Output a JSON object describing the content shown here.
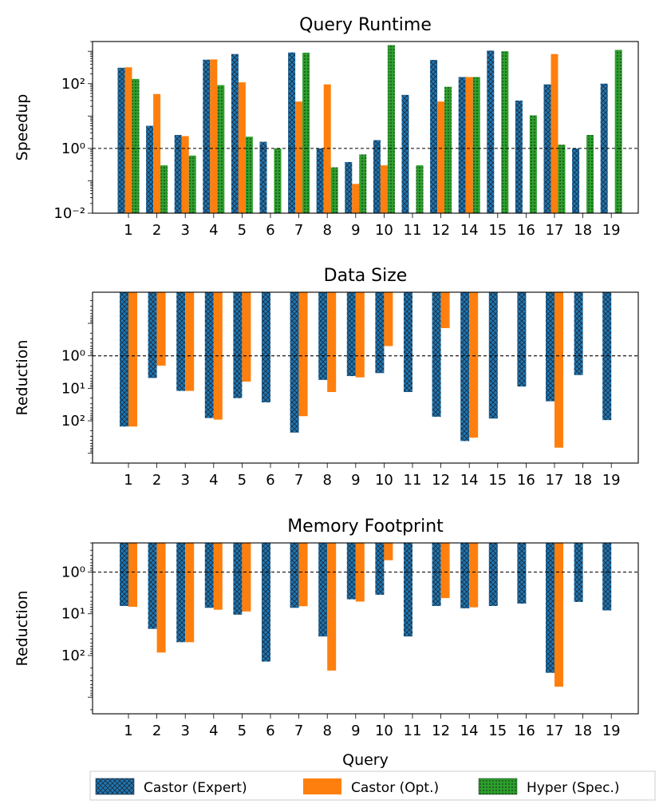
{
  "colors": {
    "expert": "#1f77b4",
    "opt": "#ff7f0e",
    "hyper": "#2ca02c",
    "axis": "#000000"
  },
  "chart_data": [
    {
      "type": "bar",
      "title": "Query Runtime",
      "ylabel": "Speedup",
      "xlabel": "",
      "yscale": "log",
      "ylim": [
        0.01,
        2000
      ],
      "yticks": [
        {
          "value": 0.01,
          "label": "10⁻²"
        },
        {
          "value": 1,
          "label": "10⁰"
        },
        {
          "value": 100,
          "label": "10²"
        }
      ],
      "reference_line": 1,
      "categories": [
        "1",
        "2",
        "3",
        "4",
        "5",
        "6",
        "7",
        "8",
        "9",
        "10",
        "11",
        "12",
        "14",
        "15",
        "16",
        "17",
        "18",
        "19"
      ],
      "series": [
        {
          "name": "Castor (Expert)",
          "key": "expert",
          "values": [
            310,
            5,
            2.6,
            550,
            820,
            1.6,
            920,
            1.0,
            0.38,
            1.8,
            45,
            540,
            160,
            1050,
            30,
            95,
            1.0,
            100
          ]
        },
        {
          "name": "Castor (Opt.)",
          "key": "opt",
          "values": [
            320,
            48,
            2.4,
            560,
            110,
            null,
            28,
            95,
            0.08,
            0.3,
            null,
            28,
            160,
            null,
            null,
            820,
            null,
            null
          ]
        },
        {
          "name": "Hyper (Spec.)",
          "key": "hyper",
          "values": [
            140,
            0.3,
            0.6,
            90,
            2.3,
            1.0,
            900,
            0.26,
            0.65,
            1550,
            0.3,
            80,
            160,
            1000,
            10.5,
            1.3,
            2.6,
            1100
          ]
        }
      ]
    },
    {
      "type": "bar",
      "title": "Data Size",
      "ylabel": "Reduction",
      "xlabel": "",
      "yscale": "log",
      "ylim": [
        0.011,
        2000
      ],
      "yticks": [
        {
          "value": 1,
          "label": "10⁰"
        },
        {
          "value": 10,
          "label": "10¹"
        },
        {
          "value": 100,
          "label": "10²"
        }
      ],
      "reference_line": 1,
      "categories": [
        "1",
        "2",
        "3",
        "4",
        "5",
        "6",
        "7",
        "8",
        "9",
        "10",
        "11",
        "12",
        "14",
        "15",
        "16",
        "17",
        "18",
        "19"
      ],
      "series": [
        {
          "name": "Castor (Expert)",
          "key": "expert",
          "values": [
            150,
            4.8,
            12,
            82,
            20,
            27,
            230,
            5.5,
            4.2,
            3.4,
            13,
            75,
            420,
            85,
            8.8,
            25,
            3.9,
            95
          ]
        },
        {
          "name": "Castor (Opt.)",
          "key": "opt",
          "values": [
            150,
            2,
            12,
            92,
            6.2,
            null,
            72,
            13,
            4.6,
            0.5,
            null,
            0.14,
            330,
            null,
            null,
            670,
            null,
            null
          ]
        }
      ]
    },
    {
      "type": "bar",
      "title": "Memory Footprint",
      "ylabel": "Reduction",
      "xlabel": "Query",
      "yscale": "log",
      "ylim": [
        0.2,
        2500
      ],
      "yticks": [
        {
          "value": 1,
          "label": "10⁰"
        },
        {
          "value": 10,
          "label": "10¹"
        },
        {
          "value": 100,
          "label": "10²"
        }
      ],
      "reference_line": 1,
      "categories": [
        "1",
        "2",
        "3",
        "4",
        "5",
        "6",
        "7",
        "8",
        "9",
        "10",
        "11",
        "12",
        "14",
        "15",
        "16",
        "17",
        "18",
        "19"
      ],
      "series": [
        {
          "name": "Castor (Expert)",
          "key": "expert",
          "values": [
            6.5,
            23,
            48,
            7.2,
            10.5,
            140,
            7.2,
            35,
            4.5,
            3.5,
            35,
            6.5,
            7.4,
            6.5,
            5.7,
            260,
            5.2,
            8.3
          ]
        },
        {
          "name": "Castor (Opt.)",
          "key": "opt",
          "values": [
            6.8,
            85,
            48,
            8,
            8.8,
            null,
            6.6,
            230,
            5.1,
            0.52,
            null,
            4.2,
            7,
            null,
            null,
            560,
            null,
            null
          ]
        }
      ]
    }
  ],
  "legend": {
    "placement": "bottom",
    "entries": [
      {
        "key": "expert",
        "label": "Castor (Expert)"
      },
      {
        "key": "opt",
        "label": "Castor (Opt.)"
      },
      {
        "key": "hyper",
        "label": "Hyper (Spec.)"
      }
    ]
  }
}
